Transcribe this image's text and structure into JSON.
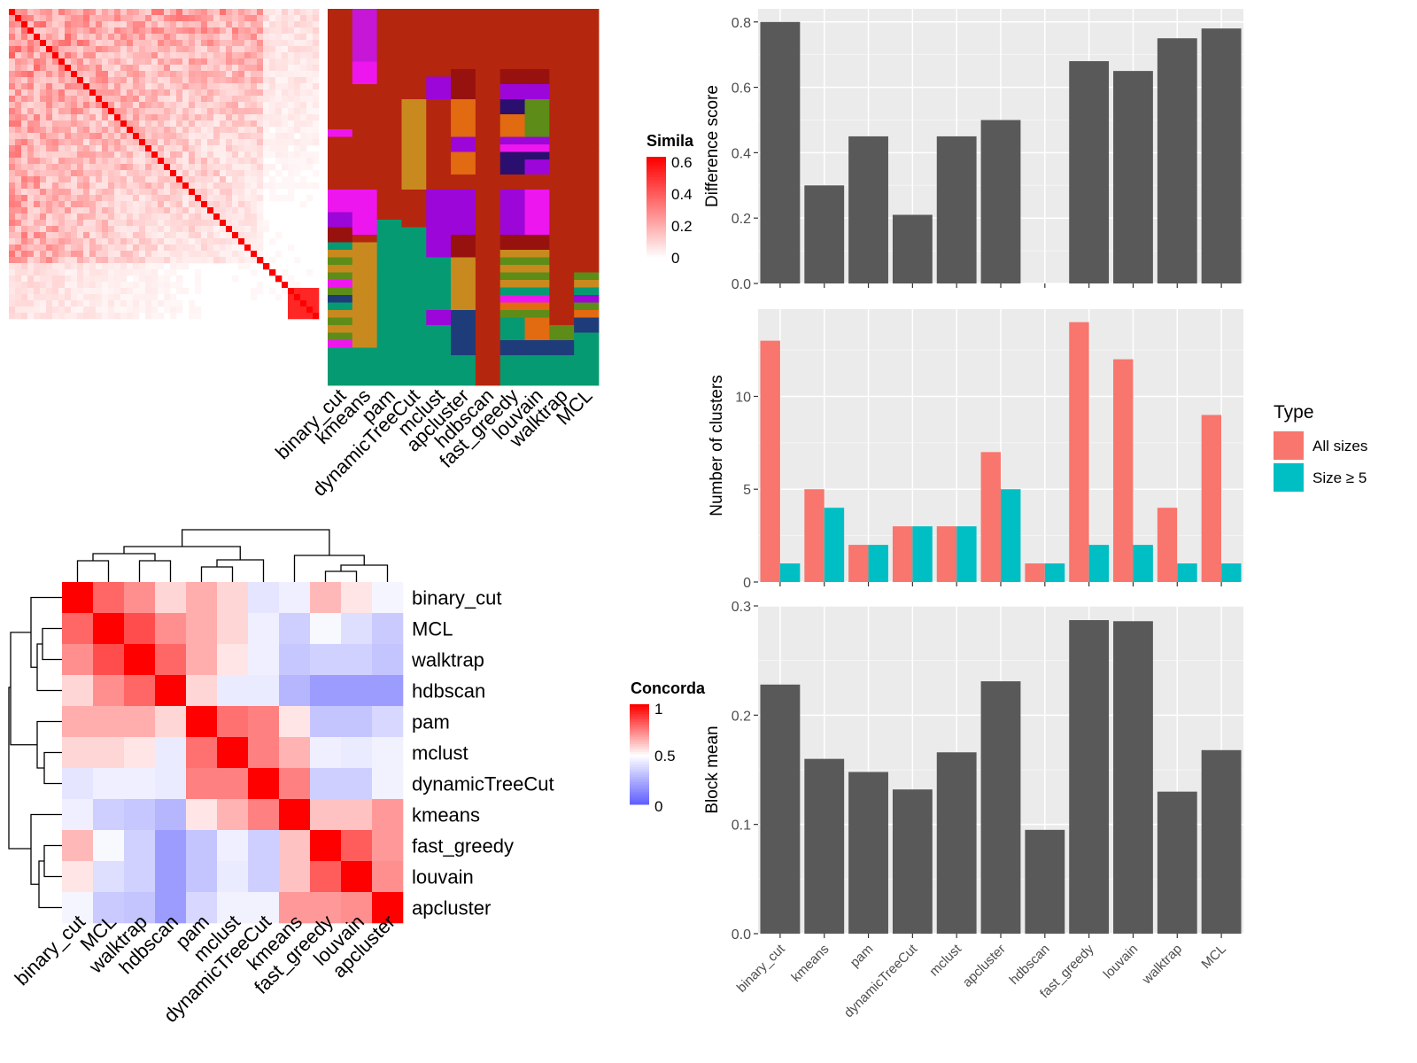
{
  "chart_data": [
    {
      "type": "heatmap",
      "legend_title": "Simila",
      "legend_ticks": [
        "0.6",
        "0.4",
        "0.2",
        "0"
      ],
      "colors": [
        "#ffffff",
        "#ff0000"
      ]
    },
    {
      "type": "heatmap",
      "categories": [
        "binary_cut",
        "kmeans",
        "pam",
        "dynamicTreeCut",
        "mclust",
        "apcluster",
        "hdbscan",
        "fast_greedy",
        "louvain",
        "walktrap",
        "MCL"
      ]
    },
    {
      "type": "heatmap",
      "legend_title": "Concorda",
      "legend_ticks": [
        "1",
        "0.5",
        "0"
      ],
      "colors": [
        "#0000ff",
        "#ffffff",
        "#ff0000"
      ],
      "row_labels": [
        "binary_cut",
        "MCL",
        "walktrap",
        "hdbscan",
        "pam",
        "mclust",
        "dynamicTreeCut",
        "kmeans",
        "fast_greedy",
        "louvain",
        "apcluster"
      ],
      "col_labels": [
        "binary_cut",
        "MCL",
        "walktrap",
        "hdbscan",
        "pam",
        "mclust",
        "dynamicTreeCut",
        "kmeans",
        "fast_greedy",
        "louvain",
        "apcluster"
      ],
      "values": [
        [
          1.0,
          0.8,
          0.72,
          0.58,
          0.66,
          0.58,
          0.42,
          0.45,
          0.64,
          0.55,
          0.47
        ],
        [
          0.8,
          1.0,
          0.85,
          0.72,
          0.66,
          0.58,
          0.45,
          0.35,
          0.48,
          0.4,
          0.34
        ],
        [
          0.72,
          0.85,
          1.0,
          0.8,
          0.66,
          0.55,
          0.45,
          0.33,
          0.36,
          0.36,
          0.32
        ],
        [
          0.58,
          0.72,
          0.8,
          1.0,
          0.58,
          0.44,
          0.44,
          0.28,
          0.2,
          0.2,
          0.2
        ],
        [
          0.66,
          0.66,
          0.66,
          0.58,
          1.0,
          0.78,
          0.75,
          0.55,
          0.32,
          0.32,
          0.38
        ],
        [
          0.58,
          0.58,
          0.55,
          0.44,
          0.78,
          1.0,
          0.75,
          0.65,
          0.45,
          0.44,
          0.46
        ],
        [
          0.42,
          0.45,
          0.45,
          0.44,
          0.75,
          0.75,
          1.0,
          0.75,
          0.35,
          0.35,
          0.46
        ],
        [
          0.45,
          0.35,
          0.33,
          0.28,
          0.55,
          0.65,
          0.75,
          1.0,
          0.62,
          0.62,
          0.7
        ],
        [
          0.64,
          0.48,
          0.36,
          0.2,
          0.32,
          0.45,
          0.35,
          0.62,
          1.0,
          0.82,
          0.7
        ],
        [
          0.55,
          0.4,
          0.36,
          0.2,
          0.32,
          0.44,
          0.35,
          0.62,
          0.82,
          1.0,
          0.72
        ],
        [
          0.47,
          0.34,
          0.32,
          0.2,
          0.38,
          0.46,
          0.46,
          0.7,
          0.7,
          0.72,
          1.0
        ]
      ]
    },
    {
      "type": "bar",
      "categories": [
        "binary_cut",
        "kmeans",
        "pam",
        "dynamicTreeCut",
        "mclust",
        "apcluster",
        "hdbscan",
        "fast_greedy",
        "louvain",
        "walktrap",
        "MCL"
      ],
      "values": [
        0.8,
        0.3,
        0.45,
        0.21,
        0.45,
        0.5,
        0,
        0.68,
        0.65,
        0.75,
        0.78
      ],
      "ylabel": "Difference score",
      "ylim": [
        0,
        0.84
      ],
      "yticks": [
        "0.0",
        "0.2",
        "0.4",
        "0.6",
        "0.8"
      ],
      "color": "#595959"
    },
    {
      "type": "bar",
      "categories": [
        "binary_cut",
        "kmeans",
        "pam",
        "dynamicTreeCut",
        "mclust",
        "apcluster",
        "hdbscan",
        "fast_greedy",
        "louvain",
        "walktrap",
        "MCL"
      ],
      "series": [
        {
          "name": "All sizes",
          "values": [
            13,
            5,
            2,
            3,
            3,
            7,
            1,
            14,
            12,
            4,
            9
          ],
          "color": "#f8766d"
        },
        {
          "name": "Size ≥ 5",
          "values": [
            1,
            4,
            2,
            3,
            3,
            5,
            1,
            2,
            2,
            1,
            1
          ],
          "color": "#00bfc4"
        }
      ],
      "ylabel": "Number of clusters",
      "ylim": [
        0,
        14.7
      ],
      "yticks": [
        "0",
        "5",
        "10"
      ],
      "legend_title": "Type"
    },
    {
      "type": "bar",
      "categories": [
        "binary_cut",
        "kmeans",
        "pam",
        "dynamicTreeCut",
        "mclust",
        "apcluster",
        "hdbscan",
        "fast_greedy",
        "louvain",
        "walktrap",
        "MCL"
      ],
      "values": [
        0.228,
        0.16,
        0.148,
        0.132,
        0.166,
        0.231,
        0.095,
        0.287,
        0.286,
        0.13,
        0.168
      ],
      "ylabel": "Block mean",
      "ylim": [
        0,
        0.3
      ],
      "yticks": [
        "0.0",
        "0.1",
        "0.2",
        "0.3"
      ],
      "color": "#595959"
    }
  ]
}
